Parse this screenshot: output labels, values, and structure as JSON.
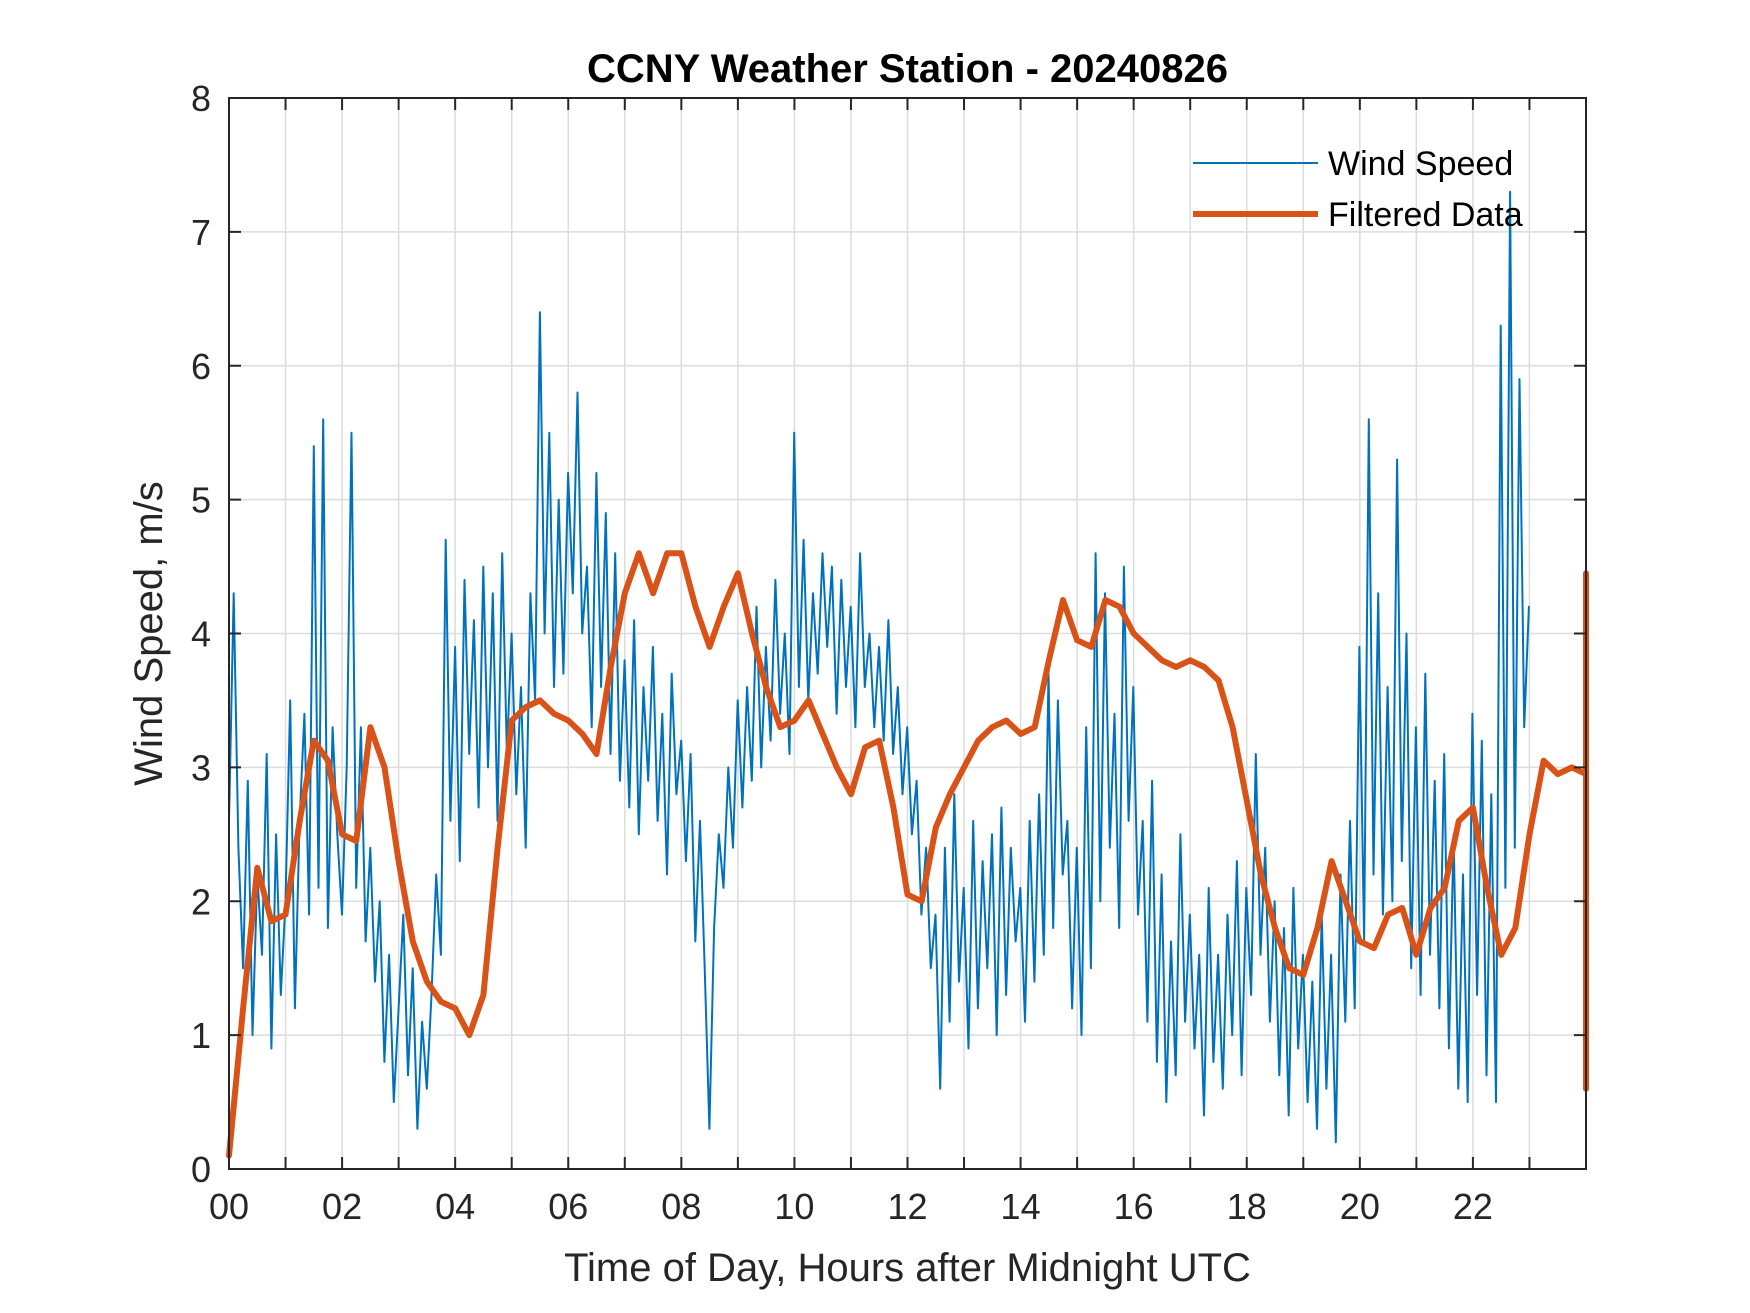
{
  "chart_data": {
    "type": "line",
    "title": "CCNY Weather Station - 20240826",
    "xlabel": "Time of Day, Hours after Midnight UTC",
    "ylabel": "Wind Speed, m/s",
    "xlim": [
      0,
      24
    ],
    "ylim": [
      0,
      8
    ],
    "xticks": [
      0,
      2,
      4,
      6,
      8,
      10,
      12,
      14,
      16,
      18,
      20,
      22
    ],
    "xtick_labels": [
      "00",
      "02",
      "04",
      "06",
      "08",
      "10",
      "12",
      "14",
      "16",
      "18",
      "20",
      "22"
    ],
    "yticks": [
      0,
      1,
      2,
      3,
      4,
      5,
      6,
      7,
      8
    ],
    "ytick_labels": [
      "0",
      "1",
      "2",
      "3",
      "4",
      "5",
      "6",
      "7",
      "8"
    ],
    "x_grid_step_hours": 1,
    "grid": true,
    "legend": {
      "placement": "top-right",
      "entries": [
        "Wind Speed",
        "Filtered Data"
      ]
    },
    "series": [
      {
        "name": "Wind Speed",
        "color": "#0072BD",
        "sample_interval_hours": 0.0833,
        "values": [
          2.6,
          4.3,
          2.4,
          1.5,
          2.9,
          1.0,
          2.2,
          1.6,
          3.1,
          0.9,
          2.5,
          1.3,
          2.0,
          3.5,
          1.2,
          2.6,
          3.4,
          1.9,
          5.4,
          2.1,
          5.6,
          1.8,
          3.3,
          2.5,
          1.9,
          3.0,
          5.5,
          2.1,
          3.3,
          1.7,
          2.4,
          1.4,
          2.0,
          0.8,
          1.6,
          0.5,
          1.2,
          1.9,
          0.7,
          1.5,
          0.3,
          1.1,
          0.6,
          1.3,
          2.2,
          1.6,
          4.7,
          2.6,
          3.9,
          2.3,
          4.4,
          3.1,
          4.1,
          2.7,
          4.5,
          3.0,
          4.3,
          2.6,
          4.6,
          3.1,
          4.0,
          2.8,
          3.6,
          2.4,
          4.3,
          3.5,
          6.4,
          4.0,
          5.5,
          3.6,
          5.0,
          3.7,
          5.2,
          4.3,
          5.8,
          4.0,
          4.5,
          3.3,
          5.2,
          3.6,
          4.9,
          3.1,
          4.6,
          2.9,
          3.8,
          2.7,
          4.1,
          2.5,
          3.6,
          2.9,
          3.9,
          2.6,
          3.4,
          2.2,
          3.7,
          2.8,
          3.2,
          2.3,
          3.1,
          1.7,
          2.6,
          1.5,
          0.3,
          1.8,
          2.5,
          2.1,
          3.0,
          2.4,
          3.5,
          2.7,
          3.6,
          2.9,
          4.2,
          3.0,
          3.9,
          3.2,
          4.4,
          3.4,
          4.0,
          3.1,
          5.5,
          3.6,
          4.7,
          3.5,
          4.3,
          3.7,
          4.6,
          3.9,
          4.5,
          3.4,
          4.4,
          3.6,
          4.2,
          3.3,
          4.6,
          3.6,
          4.0,
          3.3,
          3.9,
          3.2,
          4.1,
          3.1,
          3.6,
          2.8,
          3.3,
          2.5,
          2.9,
          1.9,
          2.4,
          1.5,
          1.9,
          0.6,
          2.4,
          1.1,
          2.8,
          1.4,
          2.1,
          0.9,
          2.6,
          1.2,
          2.3,
          1.5,
          2.5,
          1.0,
          2.7,
          1.3,
          2.4,
          1.7,
          2.1,
          1.1,
          2.6,
          1.4,
          2.8,
          1.6,
          3.7,
          1.8,
          3.5,
          2.2,
          2.6,
          1.2,
          2.4,
          1.0,
          3.3,
          1.5,
          4.6,
          2.0,
          4.3,
          2.4,
          3.4,
          1.8,
          4.5,
          2.6,
          3.6,
          1.9,
          2.6,
          1.1,
          2.9,
          0.8,
          2.2,
          0.5,
          1.7,
          0.7,
          2.5,
          1.1,
          1.9,
          0.9,
          1.6,
          0.4,
          2.1,
          0.8,
          1.6,
          0.6,
          1.9,
          1.0,
          2.3,
          0.7,
          2.1,
          1.3,
          3.1,
          1.6,
          2.4,
          1.1,
          2.0,
          0.7,
          1.8,
          0.4,
          2.1,
          0.9,
          1.6,
          0.5,
          1.4,
          0.3,
          1.9,
          0.6,
          1.6,
          0.2,
          2.2,
          1.1,
          2.6,
          1.2,
          3.9,
          1.7,
          5.6,
          2.2,
          4.3,
          1.9,
          3.6,
          2.0,
          5.3,
          2.3,
          4.0,
          1.5,
          3.3,
          1.3,
          3.7,
          1.6,
          2.9,
          1.2,
          3.1,
          0.9,
          2.5,
          0.6,
          2.2,
          0.5,
          3.4,
          1.3,
          3.2,
          0.7,
          2.8,
          0.5,
          6.3,
          2.1,
          7.3,
          2.4,
          5.9,
          3.3,
          4.2
        ]
      },
      {
        "name": "Filtered Data",
        "color": "#D95319",
        "sample_interval_hours": 0.25,
        "values": [
          0.1,
          1.2,
          2.25,
          1.85,
          1.9,
          2.6,
          3.2,
          3.05,
          2.5,
          2.45,
          3.3,
          3.0,
          2.3,
          1.7,
          1.4,
          1.25,
          1.2,
          1.0,
          1.3,
          2.4,
          3.35,
          3.45,
          3.5,
          3.4,
          3.35,
          3.25,
          3.1,
          3.75,
          4.3,
          4.6,
          4.3,
          4.6,
          4.6,
          4.2,
          3.9,
          4.2,
          4.45,
          4.0,
          3.6,
          3.3,
          3.35,
          3.5,
          3.25,
          3.0,
          2.8,
          3.15,
          3.2,
          2.7,
          2.05,
          2.0,
          2.55,
          2.8,
          3.0,
          3.2,
          3.3,
          3.35,
          3.25,
          3.3,
          3.8,
          4.25,
          3.95,
          3.9,
          4.25,
          4.2,
          4.0,
          3.9,
          3.8,
          3.75,
          3.8,
          3.75,
          3.65,
          3.3,
          2.75,
          2.2,
          1.8,
          1.5,
          1.45,
          1.8,
          2.3,
          2.0,
          1.7,
          1.65,
          1.9,
          1.95,
          1.6,
          1.95,
          2.1,
          2.6,
          2.7,
          2.1,
          1.6,
          1.8,
          2.5,
          3.05,
          2.95,
          3.0,
          2.95,
          2.1,
          1.45,
          1.3,
          1.55,
          1.55,
          1.2,
          1.25,
          1.1,
          1.0,
          1.2,
          1.45,
          1.25,
          1.45,
          2.0,
          2.35,
          1.95,
          1.45,
          1.5,
          1.15,
          0.6,
          1.3,
          1.5,
          2.2,
          2.9,
          3.15,
          2.7,
          3.0,
          2.55,
          2.2,
          2.1,
          2.5,
          2.15,
          1.95,
          1.75,
          2.05,
          1.75,
          1.6,
          1.25,
          1.35,
          1.95,
          1.9,
          2.15,
          2.75,
          3.7,
          4.45
        ]
      }
    ]
  }
}
